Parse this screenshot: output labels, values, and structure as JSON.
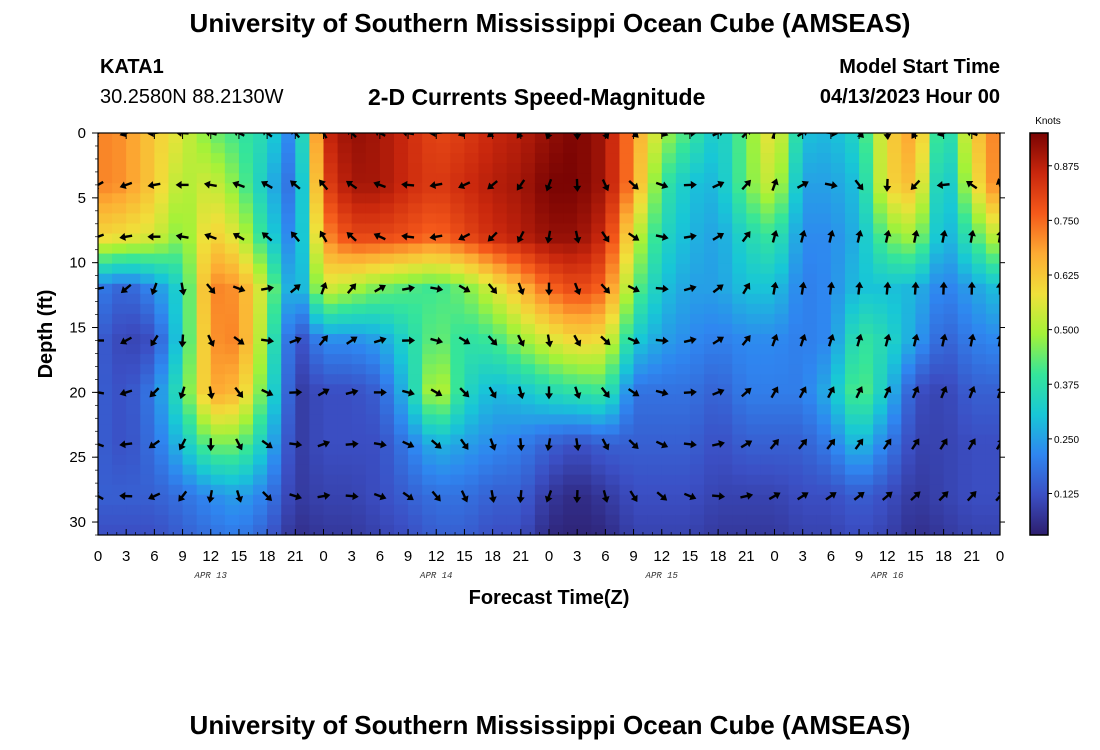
{
  "header": {
    "title": "University of Southern Mississippi Ocean Cube (AMSEAS)",
    "station": "KATA1",
    "coords": "30.2580N  88.2130W",
    "subtitle": "2-D Currents Speed-Magnitude",
    "model_start_label": "Model Start Time",
    "model_start_value": "04/13/2023 Hour 00"
  },
  "footer": {
    "title": "University of Southern Mississippi Ocean Cube (AMSEAS)"
  },
  "chart_data": {
    "type": "heatmap",
    "title": "2-D Currents Speed-Magnitude",
    "xlabel": "Forecast Time(Z)",
    "ylabel": "Depth (ft)",
    "x_hours": [
      0,
      96
    ],
    "x_ticks": [
      "0",
      "3",
      "6",
      "9",
      "12",
      "15",
      "18",
      "21",
      "0",
      "3",
      "6",
      "9",
      "12",
      "15",
      "18",
      "21",
      "0",
      "3",
      "6",
      "9",
      "12",
      "15",
      "18",
      "21",
      "0",
      "3",
      "6",
      "9",
      "12",
      "15",
      "18",
      "21",
      "0"
    ],
    "date_labels": [
      {
        "label": "APR 13",
        "hour": 12
      },
      {
        "label": "APR 14",
        "hour": 36
      },
      {
        "label": "APR 15",
        "hour": 60
      },
      {
        "label": "APR 16",
        "hour": 84
      }
    ],
    "ylim": [
      0,
      31
    ],
    "y_ticks": [
      0,
      5,
      10,
      15,
      20,
      25,
      30
    ],
    "colorbar": {
      "label": "Knots",
      "ticks": [
        "0.875",
        "0.750",
        "0.625",
        "0.500",
        "0.375",
        "0.250",
        "0.125"
      ],
      "tick_values": [
        0.875,
        0.75,
        0.625,
        0.5,
        0.375,
        0.25,
        0.125
      ],
      "range": [
        0.03,
        0.95
      ],
      "colors": [
        "#2d1e6e",
        "#3b4fc4",
        "#2f86f0",
        "#18c7d6",
        "#35e59a",
        "#a3f238",
        "#f0e03a",
        "#fdab33",
        "#f5591a",
        "#c9270d",
        "#7a0403"
      ]
    },
    "arrow_depths_ft": [
      0,
      4,
      8,
      12,
      16,
      20,
      24,
      28
    ],
    "arrow_hours": [
      0,
      3,
      6,
      9,
      12,
      15,
      18,
      21,
      24,
      27,
      30,
      33,
      36,
      39,
      42,
      45,
      48,
      51,
      54,
      57,
      60,
      63,
      66,
      69,
      72,
      75,
      78,
      81,
      84,
      87,
      90,
      93,
      96
    ],
    "speed_field": {
      "depths_ft": [
        0,
        4,
        8,
        12,
        16,
        20,
        24,
        28,
        31
      ],
      "hours": [
        0,
        3,
        6,
        9,
        12,
        15,
        18,
        21,
        24,
        27,
        30,
        33,
        36,
        39,
        42,
        45,
        48,
        51,
        54,
        57,
        60,
        63,
        66,
        69,
        72,
        75,
        78,
        81,
        84,
        87,
        90,
        93,
        96
      ],
      "knots": [
        [
          0.72,
          0.7,
          0.62,
          0.55,
          0.45,
          0.4,
          0.35,
          0.18,
          0.85,
          0.92,
          0.9,
          0.85,
          0.8,
          0.82,
          0.86,
          0.88,
          0.92,
          0.95,
          0.9,
          0.7,
          0.5,
          0.4,
          0.3,
          0.45,
          0.6,
          0.3,
          0.28,
          0.35,
          0.6,
          0.7,
          0.3,
          0.6,
          0.75
        ],
        [
          0.72,
          0.7,
          0.62,
          0.5,
          0.55,
          0.45,
          0.3,
          0.15,
          0.8,
          0.9,
          0.9,
          0.85,
          0.82,
          0.85,
          0.88,
          0.9,
          0.95,
          0.95,
          0.9,
          0.7,
          0.4,
          0.3,
          0.28,
          0.45,
          0.55,
          0.25,
          0.25,
          0.3,
          0.6,
          0.65,
          0.25,
          0.55,
          0.75
        ],
        [
          0.6,
          0.58,
          0.55,
          0.45,
          0.62,
          0.55,
          0.35,
          0.18,
          0.7,
          0.8,
          0.8,
          0.78,
          0.75,
          0.8,
          0.85,
          0.88,
          0.92,
          0.92,
          0.85,
          0.55,
          0.35,
          0.28,
          0.25,
          0.35,
          0.4,
          0.22,
          0.22,
          0.28,
          0.45,
          0.5,
          0.25,
          0.4,
          0.55
        ],
        [
          0.2,
          0.15,
          0.22,
          0.35,
          0.72,
          0.7,
          0.5,
          0.2,
          0.55,
          0.5,
          0.45,
          0.42,
          0.4,
          0.45,
          0.55,
          0.65,
          0.75,
          0.8,
          0.75,
          0.45,
          0.3,
          0.25,
          0.25,
          0.3,
          0.3,
          0.2,
          0.22,
          0.3,
          0.3,
          0.28,
          0.2,
          0.25,
          0.3
        ],
        [
          0.15,
          0.1,
          0.12,
          0.35,
          0.7,
          0.72,
          0.45,
          0.1,
          0.22,
          0.22,
          0.25,
          0.35,
          0.45,
          0.38,
          0.4,
          0.48,
          0.55,
          0.6,
          0.58,
          0.32,
          0.25,
          0.22,
          0.2,
          0.22,
          0.22,
          0.2,
          0.22,
          0.4,
          0.35,
          0.25,
          0.15,
          0.2,
          0.22
        ],
        [
          0.15,
          0.12,
          0.2,
          0.4,
          0.68,
          0.65,
          0.4,
          0.08,
          0.12,
          0.12,
          0.15,
          0.3,
          0.55,
          0.35,
          0.28,
          0.3,
          0.35,
          0.38,
          0.4,
          0.18,
          0.18,
          0.18,
          0.15,
          0.2,
          0.2,
          0.2,
          0.28,
          0.45,
          0.3,
          0.12,
          0.1,
          0.15,
          0.15
        ],
        [
          0.15,
          0.12,
          0.18,
          0.3,
          0.45,
          0.45,
          0.3,
          0.08,
          0.12,
          0.12,
          0.12,
          0.2,
          0.28,
          0.25,
          0.22,
          0.2,
          0.15,
          0.12,
          0.15,
          0.15,
          0.15,
          0.15,
          0.12,
          0.15,
          0.15,
          0.15,
          0.2,
          0.3,
          0.2,
          0.1,
          0.1,
          0.12,
          0.12
        ],
        [
          0.15,
          0.15,
          0.15,
          0.18,
          0.22,
          0.25,
          0.2,
          0.08,
          0.1,
          0.1,
          0.12,
          0.15,
          0.18,
          0.18,
          0.15,
          0.15,
          0.08,
          0.05,
          0.08,
          0.12,
          0.12,
          0.12,
          0.1,
          0.1,
          0.1,
          0.12,
          0.12,
          0.15,
          0.12,
          0.08,
          0.1,
          0.12,
          0.12
        ],
        [
          0.12,
          0.12,
          0.12,
          0.15,
          0.18,
          0.2,
          0.15,
          0.06,
          0.08,
          0.08,
          0.1,
          0.12,
          0.15,
          0.15,
          0.12,
          0.12,
          0.05,
          0.04,
          0.05,
          0.1,
          0.1,
          0.1,
          0.08,
          0.08,
          0.08,
          0.1,
          0.1,
          0.12,
          0.1,
          0.06,
          0.08,
          0.1,
          0.1
        ]
      ]
    },
    "direction_field_deg": {
      "depths_ft": [
        0,
        4,
        8,
        12,
        16,
        20,
        24,
        28
      ],
      "hours": [
        0,
        24,
        48,
        72,
        96
      ],
      "angles": [
        [
          240,
          330,
          200,
          20,
          330
        ],
        [
          240,
          320,
          200,
          20,
          345
        ],
        [
          250,
          330,
          190,
          15,
          10
        ],
        [
          260,
          20,
          180,
          10,
          0
        ],
        [
          270,
          40,
          170,
          20,
          10
        ],
        [
          280,
          60,
          180,
          30,
          20
        ],
        [
          290,
          70,
          190,
          40,
          30
        ],
        [
          300,
          80,
          200,
          60,
          40
        ]
      ]
    }
  }
}
